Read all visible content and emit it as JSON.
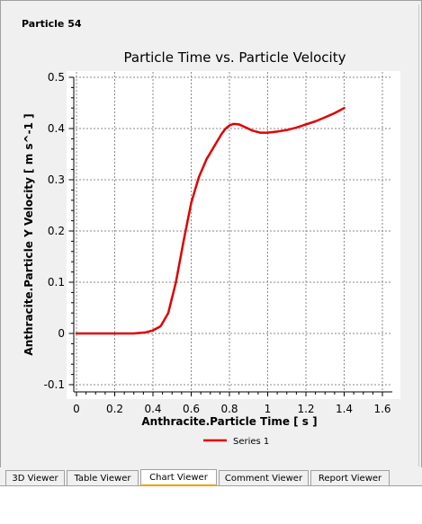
{
  "panel": {
    "title": "Particle 54"
  },
  "tabs": [
    {
      "label": "3D Viewer",
      "active": false
    },
    {
      "label": "Table Viewer",
      "active": false
    },
    {
      "label": "Chart Viewer",
      "active": true
    },
    {
      "label": "Comment Viewer",
      "active": false
    },
    {
      "label": "Report Viewer",
      "active": false
    }
  ],
  "chart_data": {
    "type": "line",
    "title": "Particle Time vs. Particle Velocity",
    "xlabel": "Anthracite.Particle Time [ s ]",
    "ylabel": "Anthracite.Particle Y Velocity [ m s^-1 ]",
    "xlim": [
      0,
      1.6
    ],
    "ylim": [
      -0.1,
      0.5
    ],
    "xticks": [
      0,
      0.2,
      0.4,
      0.6,
      0.8,
      1,
      1.2,
      1.4,
      1.6
    ],
    "yticks": [
      -0.1,
      0,
      0.1,
      0.2,
      0.3,
      0.4,
      0.5
    ],
    "grid": true,
    "legend": "bottom-center",
    "series": [
      {
        "name": "Series 1",
        "color": "#e00000",
        "x": [
          0,
          0.1,
          0.2,
          0.3,
          0.36,
          0.4,
          0.44,
          0.48,
          0.52,
          0.56,
          0.6,
          0.64,
          0.68,
          0.72,
          0.76,
          0.78,
          0.8,
          0.82,
          0.85,
          0.88,
          0.92,
          0.96,
          1.0,
          1.05,
          1.1,
          1.15,
          1.2,
          1.25,
          1.3,
          1.35,
          1.4
        ],
        "y": [
          0,
          0,
          0,
          0,
          0.002,
          0.006,
          0.014,
          0.04,
          0.1,
          0.18,
          0.255,
          0.305,
          0.34,
          0.365,
          0.39,
          0.4,
          0.406,
          0.409,
          0.408,
          0.403,
          0.396,
          0.392,
          0.392,
          0.394,
          0.397,
          0.402,
          0.408,
          0.414,
          0.422,
          0.43,
          0.44
        ]
      }
    ]
  }
}
